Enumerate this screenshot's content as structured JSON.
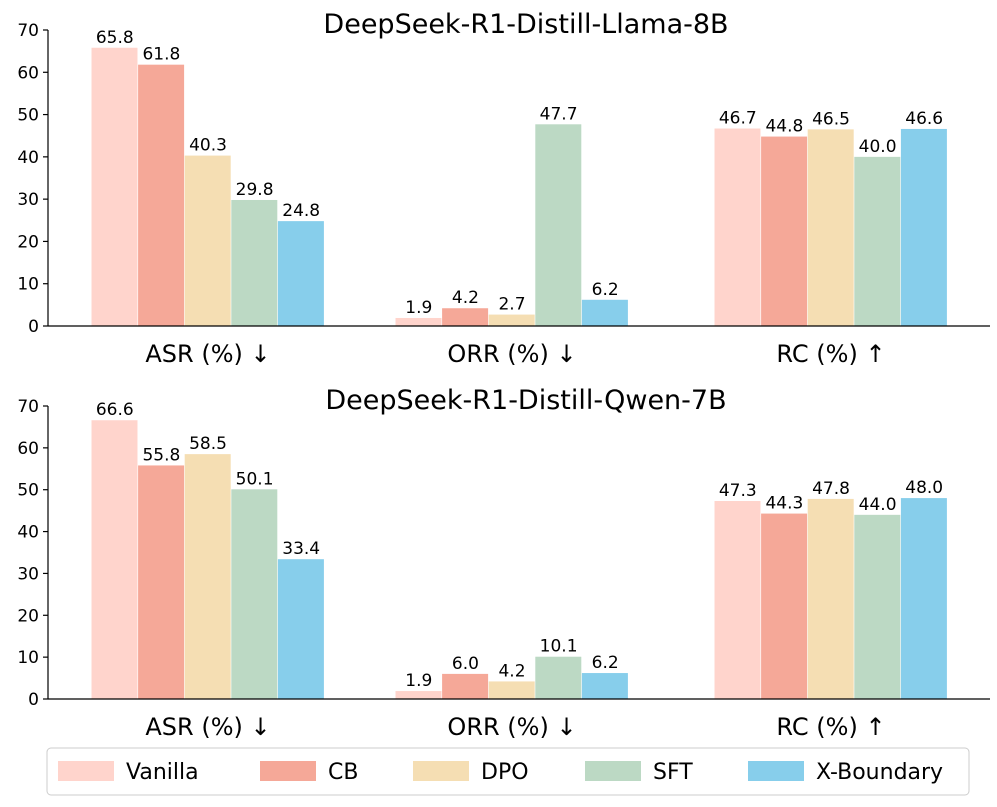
{
  "chart_data": [
    {
      "type": "bar",
      "title": "DeepSeek-R1-Distill-Llama-8B",
      "categories": [
        "ASR (%) ↓",
        "ORR (%) ↓",
        "RC (%) ↑"
      ],
      "series": [
        {
          "name": "Vanilla",
          "values": [
            65.8,
            1.9,
            46.7
          ]
        },
        {
          "name": "CB",
          "values": [
            61.8,
            4.2,
            44.8
          ]
        },
        {
          "name": "DPO",
          "values": [
            40.3,
            2.7,
            46.5
          ]
        },
        {
          "name": "SFT",
          "values": [
            29.8,
            47.7,
            40.0
          ]
        },
        {
          "name": "X-Boundary",
          "values": [
            24.8,
            6.2,
            46.6
          ]
        }
      ],
      "ylim": [
        0,
        70
      ],
      "yticks": [
        0,
        10,
        20,
        30,
        40,
        50,
        60,
        70
      ],
      "xlabel": "",
      "ylabel": ""
    },
    {
      "type": "bar",
      "title": "DeepSeek-R1-Distill-Qwen-7B",
      "categories": [
        "ASR (%) ↓",
        "ORR (%) ↓",
        "RC (%) ↑"
      ],
      "series": [
        {
          "name": "Vanilla",
          "values": [
            66.6,
            1.9,
            47.3
          ]
        },
        {
          "name": "CB",
          "values": [
            55.8,
            6.0,
            44.3
          ]
        },
        {
          "name": "DPO",
          "values": [
            58.5,
            4.2,
            47.8
          ]
        },
        {
          "name": "SFT",
          "values": [
            50.1,
            10.1,
            44.0
          ]
        },
        {
          "name": "X-Boundary",
          "values": [
            33.4,
            6.2,
            48.0
          ]
        }
      ],
      "ylim": [
        0,
        70
      ],
      "yticks": [
        0,
        10,
        20,
        30,
        40,
        50,
        60,
        70
      ],
      "xlabel": "",
      "ylabel": ""
    }
  ],
  "legend": {
    "position": "bottom",
    "items": [
      {
        "name": "Vanilla",
        "color": "#ffd4cc"
      },
      {
        "name": "CB",
        "color": "#f5a898"
      },
      {
        "name": "DPO",
        "color": "#f5deb3"
      },
      {
        "name": "SFT",
        "color": "#bcd9c4"
      },
      {
        "name": "X-Boundary",
        "color": "#87ceeb"
      }
    ]
  }
}
